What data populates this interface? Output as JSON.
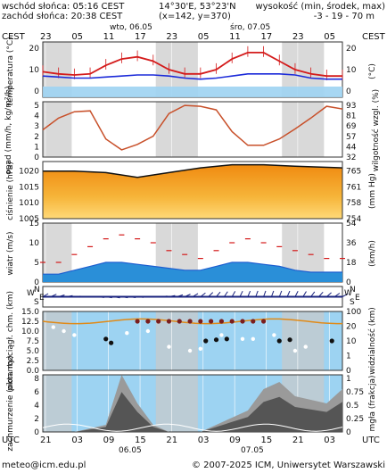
{
  "header": {
    "sunrise": "wschód słońca: 05:16 CEST",
    "sunset": "zachód słońca: 20:38 CEST",
    "coords": "14°30'E, 53°23'N",
    "grid": "(x=142, y=370)",
    "elevation_label": "wysokość (min, środek, max)",
    "elevation_values": "-3 - 19 - 70 m"
  },
  "time_axis": {
    "top_tz": "CEST",
    "top_hours": [
      "23",
      "05",
      "11",
      "17",
      "23",
      "05",
      "11",
      "17",
      "23",
      "05"
    ],
    "top_days": [
      "wto, 06.05",
      "śro, 07.05"
    ],
    "bottom_tz": "UTC",
    "bottom_hours": [
      "21",
      "03",
      "09",
      "15",
      "21",
      "03",
      "09",
      "15",
      "21",
      "03"
    ],
    "bottom_days": [
      "06.05",
      "07.05"
    ]
  },
  "footer": {
    "email": "meteo@icm.edu.pl",
    "copyright": "© 2007-2025 ICM, Uniwersytet Warszawski"
  },
  "colors": {
    "sky": "#9dd3f2",
    "night_band": "#c9c9c9",
    "temperature": "#d41b1b",
    "dew_point": "#1c2bd9",
    "precip_curve": "#c8502a",
    "pressure_line": "#111111",
    "wind_speed": "#1e5fd0",
    "wind_gust": "#d41b1b",
    "cloud_low": "#555555"
  },
  "chart_data": [
    {
      "type": "line",
      "panel": "temperatura",
      "ylabel_left": "temperatura (°C)",
      "ylabel_right": "(°C)",
      "y_ticks": [
        "0",
        "10",
        "20"
      ],
      "ylim": [
        -3,
        23
      ],
      "x_hours": [
        0,
        3,
        6,
        9,
        12,
        15,
        18,
        21,
        24,
        27,
        30,
        33,
        36,
        39,
        42,
        45,
        48,
        51,
        54,
        57
      ],
      "series": [
        {
          "values": [
            9,
            8,
            7.5,
            8,
            12,
            15,
            16,
            14,
            10,
            8,
            8,
            10,
            15,
            18,
            18,
            14,
            10,
            8,
            7,
            7
          ]
        },
        {
          "values": [
            7,
            6.5,
            6,
            6,
            6.5,
            7,
            7.5,
            7.5,
            7,
            6,
            5.5,
            6,
            7,
            8,
            8,
            8,
            7.5,
            6,
            5.5,
            5.5
          ]
        }
      ]
    },
    {
      "type": "line",
      "panel": "opad",
      "ylabel_left": "opad (mm/h, kg/m²/h)",
      "ylabel_right": "wilgotność wzgl. (%)",
      "y_ticks_left": [
        "0",
        "1",
        "2",
        "3",
        "4",
        "5"
      ],
      "y_ticks_right": [
        "32",
        "44",
        "57",
        "69",
        "81",
        "93"
      ],
      "ylim": [
        32,
        93
      ],
      "x_hours": [
        0,
        3,
        6,
        9,
        12,
        15,
        18,
        21,
        24,
        27,
        30,
        33,
        36,
        39,
        42,
        45,
        48,
        51,
        54,
        57
      ],
      "values": [
        62,
        75,
        82,
        83,
        52,
        40,
        46,
        55,
        80,
        89,
        88,
        84,
        60,
        45,
        45,
        52,
        63,
        75,
        88,
        85
      ]
    },
    {
      "type": "area",
      "panel": "ciśnienie",
      "ylabel_left": "ciśnienie (hPa)",
      "ylabel_right": "(mm Hg)",
      "y_ticks_left": [
        "1005",
        "1010",
        "1015",
        "1020"
      ],
      "y_ticks_right": [
        "754",
        "758",
        "761",
        "765"
      ],
      "ylim": [
        1005,
        1023
      ],
      "x_hours": [
        0,
        6,
        12,
        18,
        24,
        30,
        36,
        42,
        48,
        57
      ],
      "values": [
        1020,
        1020,
        1019.5,
        1018,
        1019.5,
        1021,
        1022,
        1022,
        1021.5,
        1021
      ]
    },
    {
      "type": "line",
      "panel": "wiatr",
      "ylabel_left": "wiatr (m/s)",
      "ylabel_right": "(km/h)",
      "y_ticks_left": [
        "0",
        "5",
        "10",
        "15"
      ],
      "y_ticks_right": [
        "0",
        "18",
        "36",
        "54"
      ],
      "ylim": [
        0,
        15
      ],
      "x_hours": [
        0,
        3,
        6,
        9,
        12,
        15,
        18,
        21,
        24,
        27,
        30,
        33,
        36,
        39,
        42,
        45,
        48,
        51,
        54,
        57
      ],
      "series": [
        {
          "values": [
            2,
            2,
            3,
            4,
            5,
            5,
            4.5,
            4,
            3.5,
            3,
            3,
            4,
            5,
            5,
            4.5,
            4,
            3,
            2.5,
            2.5,
            2.5
          ]
        },
        {
          "values": [
            5,
            5,
            7,
            9,
            11,
            12,
            11,
            10,
            8,
            7,
            6,
            8,
            10,
            11,
            10,
            9,
            8,
            7,
            6,
            6
          ]
        }
      ]
    },
    {
      "type": "scatter",
      "panel": "zachmurzenie",
      "ylabel_left": "pion. rozciągł. chm. (km)",
      "ylabel_right": "widzialność (km)",
      "y_ticks_left": [
        "0.0",
        "2.5",
        "5.0",
        "7.5",
        "10.0",
        "12.5",
        "15.0"
      ],
      "y_ticks_right": [
        "0",
        "1",
        "10",
        "20",
        "100"
      ],
      "ylim": [
        0,
        15
      ]
    },
    {
      "type": "area",
      "panel": "mgła",
      "ylabel_left": "zachmurzenie (oktanty)",
      "ylabel_right": "mgła (frakcja)",
      "y_ticks_left": [
        "0",
        "2",
        "4",
        "6",
        "8"
      ],
      "y_ticks_right": [
        "0",
        "0.25",
        "0.5",
        "0.75",
        "1"
      ],
      "ylim": [
        0,
        8
      ],
      "x_hours": [
        0,
        6,
        12,
        15,
        18,
        21,
        24,
        30,
        36,
        39,
        42,
        45,
        48,
        54,
        57
      ],
      "values": [
        0,
        0,
        1,
        8,
        4,
        1,
        0,
        0,
        2,
        3,
        6,
        7,
        5,
        4,
        6
      ]
    }
  ]
}
